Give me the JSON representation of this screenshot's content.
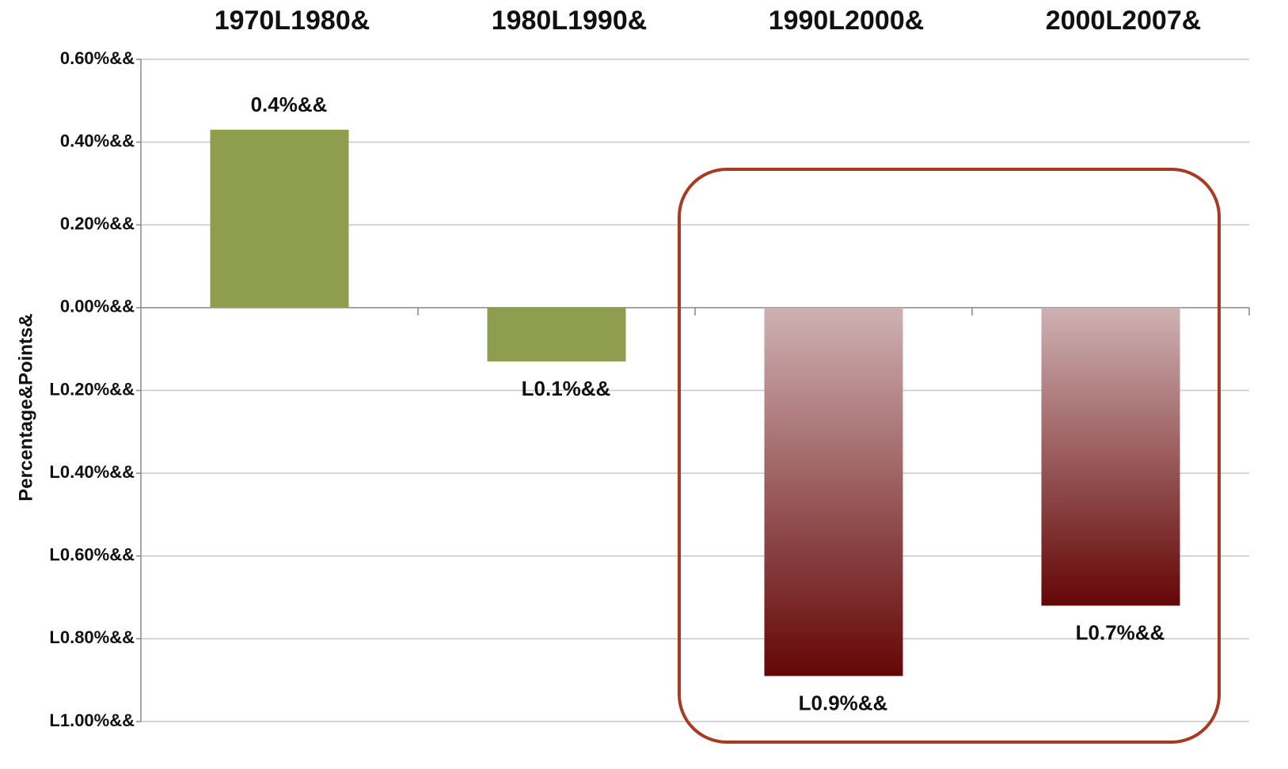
{
  "chart_data": {
    "type": "bar",
    "categories": [
      "1970L1980&",
      "1980L1990&",
      "1990L2000&",
      "2000L2007&"
    ],
    "values": [
      0.43,
      -0.13,
      -0.89,
      -0.72
    ],
    "value_labels": [
      "0.4%&&",
      "L0.1%&&",
      "L0.9%&&",
      "L0.7%&&"
    ],
    "colors": [
      "#8f9d4f",
      "#8f9d4f",
      "#640606",
      "#640606"
    ],
    "gradient_top": [
      null,
      null,
      "#cfb1b3",
      "#cfb1b3"
    ],
    "ylabel": "Percentage&Points&",
    "ylim": [
      -1.0,
      0.6
    ],
    "yticks": [
      {
        "value": 0.6,
        "label": "0.60%&&"
      },
      {
        "value": 0.4,
        "label": "0.40%&&"
      },
      {
        "value": 0.2,
        "label": "0.20%&&"
      },
      {
        "value": 0,
        "label": "0.00%&&"
      },
      {
        "value": -0.2,
        "label": "L0.20%&&"
      },
      {
        "value": -0.4,
        "label": "L0.40%&&"
      },
      {
        "value": -0.6,
        "label": "L0.60%&&"
      },
      {
        "value": -0.8,
        "label": "L0.80%&&"
      },
      {
        "value": -1.0,
        "label": "L1.00%&&"
      }
    ],
    "grid": true
  }
}
